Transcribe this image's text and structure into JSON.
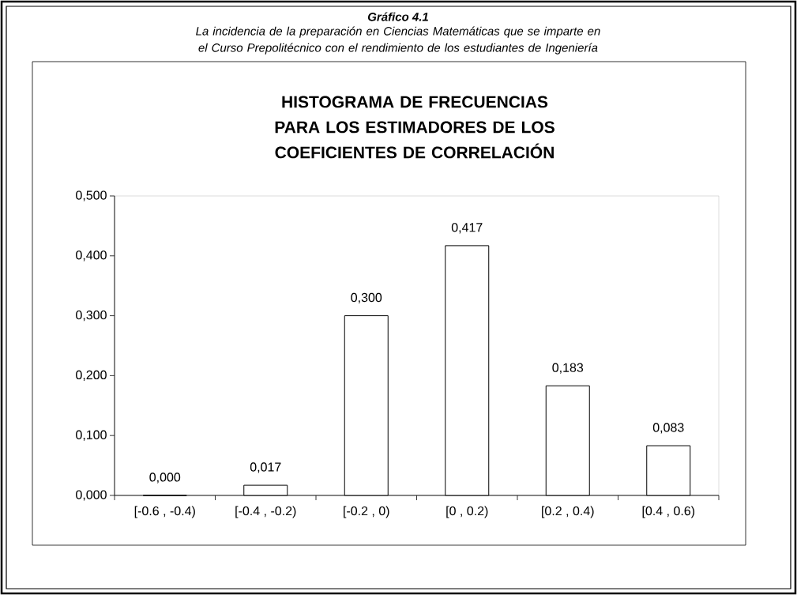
{
  "chart_data": {
    "type": "bar",
    "title": "HISTOGRAMA DE FRECUENCIAS PARA LOS ESTIMADORES DE LOS COEFICIENTES DE CORRELACIÓN",
    "annotations": [
      "Gráfico 4.1",
      "La  incidencia de la preparación en Ciencias Matemáticas que se imparte en el Curso Prepolitécnico con el rendimiento de los estudiantes de Ingeniería"
    ],
    "categories": [
      "[-0.6 ,   -0.4)",
      "[-0.4 ,   -0.2)",
      "[-0.2 ,      0)",
      "[0   ,    0.2)",
      "[0.2   , 0.4)",
      "[0.4 ,    0.6)"
    ],
    "values": [
      0.0,
      0.017,
      0.3,
      0.417,
      0.183,
      0.083
    ],
    "value_labels": [
      "0,000",
      "0,017",
      "0,300",
      "0,417",
      "0,183",
      "0,083"
    ],
    "color": "#ffffff",
    "ylim": [
      0,
      0.5
    ],
    "yticks": [
      {
        "value": 0,
        "label": "0,000"
      },
      {
        "value": 0.1,
        "label": "0,100"
      },
      {
        "value": 0.2,
        "label": "0,200"
      },
      {
        "value": 0.3,
        "label": "0,300"
      },
      {
        "value": 0.4,
        "label": "0,400"
      },
      {
        "value": 0.5,
        "label": "0,500"
      }
    ]
  }
}
